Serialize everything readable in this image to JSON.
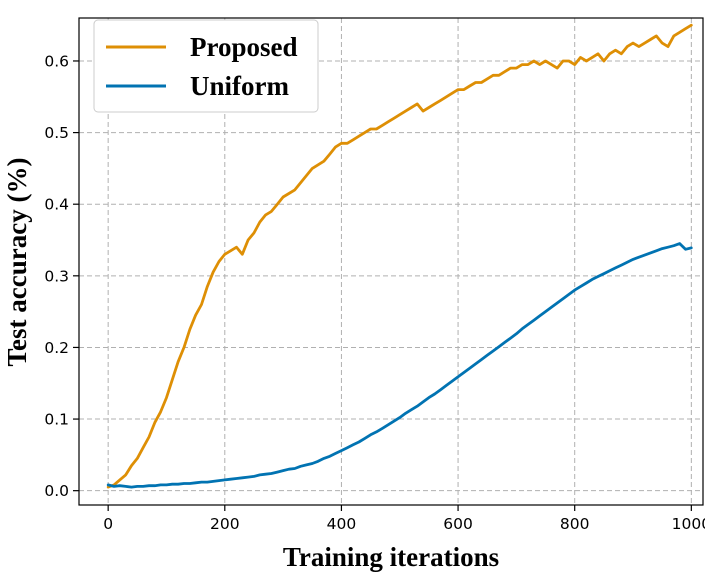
{
  "chart_data": {
    "type": "line",
    "xlabel": "Training iterations",
    "ylabel": "Test accuracy (%)",
    "xlim": [
      -50,
      1020
    ],
    "ylim": [
      -0.02,
      0.66
    ],
    "xticks": [
      0,
      200,
      400,
      600,
      800,
      1000
    ],
    "xtick_labels": [
      "0",
      "200",
      "400",
      "600",
      "800",
      "1000"
    ],
    "yticks": [
      0.0,
      0.1,
      0.2,
      0.3,
      0.4,
      0.5,
      0.6
    ],
    "ytick_labels": [
      "0.0",
      "0.1",
      "0.2",
      "0.3",
      "0.4",
      "0.5",
      "0.6"
    ],
    "grid": true,
    "legend_position": "upper-left",
    "series": [
      {
        "name": "Proposed",
        "color": "#de8f05",
        "x": [
          0,
          10,
          20,
          30,
          40,
          50,
          60,
          70,
          80,
          90,
          100,
          110,
          120,
          130,
          140,
          150,
          160,
          170,
          180,
          190,
          200,
          210,
          220,
          230,
          240,
          250,
          260,
          270,
          280,
          290,
          300,
          310,
          320,
          330,
          340,
          350,
          360,
          370,
          380,
          390,
          400,
          410,
          420,
          430,
          440,
          450,
          460,
          470,
          480,
          490,
          500,
          510,
          520,
          530,
          540,
          550,
          560,
          570,
          580,
          590,
          600,
          610,
          620,
          630,
          640,
          650,
          660,
          670,
          680,
          690,
          700,
          710,
          720,
          730,
          740,
          750,
          760,
          770,
          780,
          790,
          800,
          810,
          820,
          830,
          840,
          850,
          860,
          870,
          880,
          890,
          900,
          910,
          920,
          930,
          940,
          950,
          960,
          970,
          980,
          990,
          1000
        ],
        "values": [
          0.005,
          0.008,
          0.015,
          0.022,
          0.035,
          0.045,
          0.06,
          0.075,
          0.095,
          0.11,
          0.13,
          0.155,
          0.18,
          0.2,
          0.225,
          0.245,
          0.26,
          0.285,
          0.305,
          0.32,
          0.33,
          0.335,
          0.34,
          0.33,
          0.35,
          0.36,
          0.375,
          0.385,
          0.39,
          0.4,
          0.41,
          0.415,
          0.42,
          0.43,
          0.44,
          0.45,
          0.455,
          0.46,
          0.47,
          0.48,
          0.485,
          0.485,
          0.49,
          0.495,
          0.5,
          0.505,
          0.505,
          0.51,
          0.515,
          0.52,
          0.525,
          0.53,
          0.535,
          0.54,
          0.53,
          0.535,
          0.54,
          0.545,
          0.55,
          0.555,
          0.56,
          0.56,
          0.565,
          0.57,
          0.57,
          0.575,
          0.58,
          0.58,
          0.585,
          0.59,
          0.59,
          0.595,
          0.595,
          0.6,
          0.595,
          0.6,
          0.595,
          0.59,
          0.6,
          0.6,
          0.595,
          0.605,
          0.6,
          0.605,
          0.61,
          0.6,
          0.61,
          0.615,
          0.61,
          0.62,
          0.625,
          0.62,
          0.625,
          0.63,
          0.635,
          0.625,
          0.62,
          0.635,
          0.64,
          0.645,
          0.65
        ]
      },
      {
        "name": "Uniform",
        "color": "#0173b2",
        "x": [
          0,
          10,
          20,
          30,
          40,
          50,
          60,
          70,
          80,
          90,
          100,
          110,
          120,
          130,
          140,
          150,
          160,
          170,
          180,
          190,
          200,
          210,
          220,
          230,
          240,
          250,
          260,
          270,
          280,
          290,
          300,
          310,
          320,
          330,
          340,
          350,
          360,
          370,
          380,
          390,
          400,
          410,
          420,
          430,
          440,
          450,
          460,
          470,
          480,
          490,
          500,
          510,
          520,
          530,
          540,
          550,
          560,
          570,
          580,
          590,
          600,
          610,
          620,
          630,
          640,
          650,
          660,
          670,
          680,
          690,
          700,
          710,
          720,
          730,
          740,
          750,
          760,
          770,
          780,
          790,
          800,
          810,
          820,
          830,
          840,
          850,
          860,
          870,
          880,
          890,
          900,
          910,
          920,
          930,
          940,
          950,
          960,
          970,
          980,
          990,
          1000
        ],
        "values": [
          0.008,
          0.006,
          0.007,
          0.006,
          0.005,
          0.006,
          0.006,
          0.007,
          0.007,
          0.008,
          0.008,
          0.009,
          0.009,
          0.01,
          0.01,
          0.011,
          0.012,
          0.012,
          0.013,
          0.014,
          0.015,
          0.016,
          0.017,
          0.018,
          0.019,
          0.02,
          0.022,
          0.023,
          0.024,
          0.026,
          0.028,
          0.03,
          0.031,
          0.034,
          0.036,
          0.038,
          0.041,
          0.045,
          0.048,
          0.052,
          0.056,
          0.06,
          0.064,
          0.068,
          0.073,
          0.078,
          0.082,
          0.087,
          0.092,
          0.097,
          0.102,
          0.108,
          0.113,
          0.118,
          0.124,
          0.13,
          0.135,
          0.141,
          0.147,
          0.153,
          0.159,
          0.165,
          0.171,
          0.177,
          0.183,
          0.189,
          0.195,
          0.201,
          0.207,
          0.213,
          0.219,
          0.226,
          0.232,
          0.238,
          0.244,
          0.25,
          0.256,
          0.262,
          0.268,
          0.274,
          0.28,
          0.285,
          0.29,
          0.295,
          0.299,
          0.303,
          0.307,
          0.311,
          0.315,
          0.319,
          0.323,
          0.326,
          0.329,
          0.332,
          0.335,
          0.338,
          0.34,
          0.342,
          0.345,
          0.337,
          0.339
        ]
      }
    ]
  }
}
